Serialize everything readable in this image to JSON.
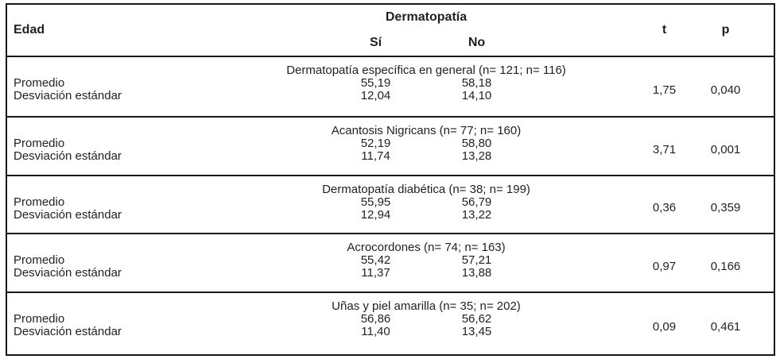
{
  "table": {
    "header": {
      "edad": "Edad",
      "group": "Dermatopatía",
      "si": "Sí",
      "no": "No",
      "t": "t",
      "p": "p"
    },
    "row_labels": {
      "mean": "Promedio",
      "sd": "Desviación estándar"
    },
    "sections": [
      {
        "title": "Dermatopatía específica en general (n= 121; n= 116)",
        "mean_si": "55,19",
        "mean_no": "58,18",
        "sd_si": "12,04",
        "sd_no": "14,10",
        "t": "1,75",
        "p": "0,040"
      },
      {
        "title": "Acantosis Nigricans (n= 77; n= 160)",
        "mean_si": "52,19",
        "mean_no": "58,80",
        "sd_si": "11,74",
        "sd_no": "13,28",
        "t": "3,71",
        "p": "0,001"
      },
      {
        "title": "Dermatopatía diabética (n= 38; n= 199)",
        "mean_si": "55,95",
        "mean_no": "56,79",
        "sd_si": "12,94",
        "sd_no": "13,22",
        "t": "0,36",
        "p": "0,359"
      },
      {
        "title": "Acrocordones (n= 74; n= 163)",
        "mean_si": "55,42",
        "mean_no": "57,21",
        "sd_si": "11,37",
        "sd_no": "13,88",
        "t": "0,97",
        "p": "0,166"
      },
      {
        "title": "Uñas y piel amarilla (n= 35; n= 202)",
        "mean_si": "56,86",
        "mean_no": "56,62",
        "sd_si": "11,40",
        "sd_no": "13,45",
        "t": "0,09",
        "p": "0,461"
      }
    ]
  },
  "chart_data": {
    "type": "table",
    "title": "Edad vs Dermatopatía",
    "columns": [
      "Edad",
      "Sí",
      "No",
      "t",
      "p"
    ],
    "groups": [
      {
        "condition": "Dermatopatía específica en general",
        "n_si": 121,
        "n_no": 116,
        "promedio_si": 55.19,
        "promedio_no": 58.18,
        "de_si": 12.04,
        "de_no": 14.1,
        "t": 1.75,
        "p": 0.04
      },
      {
        "condition": "Acantosis Nigricans",
        "n_si": 77,
        "n_no": 160,
        "promedio_si": 52.19,
        "promedio_no": 58.8,
        "de_si": 11.74,
        "de_no": 13.28,
        "t": 3.71,
        "p": 0.001
      },
      {
        "condition": "Dermatopatía diabética",
        "n_si": 38,
        "n_no": 199,
        "promedio_si": 55.95,
        "promedio_no": 56.79,
        "de_si": 12.94,
        "de_no": 13.22,
        "t": 0.36,
        "p": 0.359
      },
      {
        "condition": "Acrocordones",
        "n_si": 74,
        "n_no": 163,
        "promedio_si": 55.42,
        "promedio_no": 57.21,
        "de_si": 11.37,
        "de_no": 13.88,
        "t": 0.97,
        "p": 0.166
      },
      {
        "condition": "Uñas y piel amarilla",
        "n_si": 35,
        "n_no": 202,
        "promedio_si": 56.86,
        "promedio_no": 56.62,
        "de_si": 11.4,
        "de_no": 13.45,
        "t": 0.09,
        "p": 0.461
      }
    ]
  }
}
